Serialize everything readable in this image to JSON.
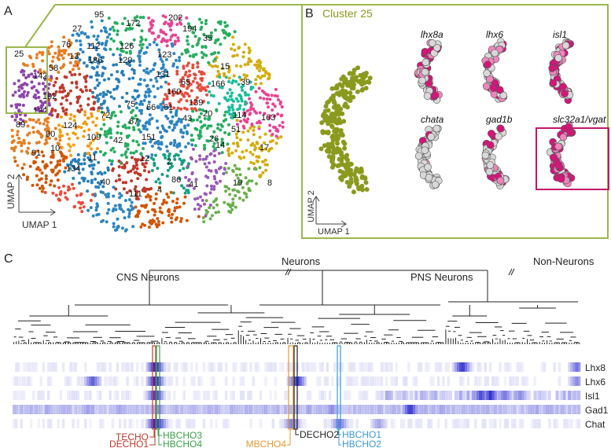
{
  "colors": {
    "olive": "#8a9a1e",
    "frame": "#9bb84a",
    "magenta": "#c2186b",
    "tree": "#222222",
    "techo": "#c0392b",
    "hbcho_green": "#3aa04a",
    "mbcho": "#e39a2e",
    "decho2": "#222222",
    "hbcho_blue": "#3a9ad9",
    "heat": "#1a1acc",
    "palette": [
      "#e67e22",
      "#2e86c1",
      "#27ae60",
      "#c0392b",
      "#d4ac0d",
      "#8e44ad",
      "#e74c3c",
      "#1abc9c",
      "#7f8c8d",
      "#d35400",
      "#16a085",
      "#f39c12",
      "#2980b9",
      "#9b59b6",
      "#e84393",
      "#6ab04c"
    ]
  },
  "panelA": {
    "letter": "A",
    "axis_y": "UMAP 2",
    "axis_x": "UMAP 1",
    "clusters": [
      "95",
      "202",
      "172",
      "194",
      "27",
      "35",
      "112",
      "126",
      "76",
      "13",
      "186",
      "120",
      "123",
      "15",
      "25",
      "142",
      "58",
      "166",
      "131",
      "65",
      "39",
      "192",
      "160",
      "75",
      "66",
      "61",
      "139",
      "20",
      "114",
      "163",
      "132",
      "72",
      "67",
      "43",
      "51",
      "89",
      "124",
      "90",
      "109",
      "42",
      "151",
      "26",
      "14",
      "91",
      "10",
      "11",
      "12",
      "2",
      "17",
      "134",
      "40",
      "111",
      "4",
      "86",
      "41",
      "19",
      "8"
    ]
  },
  "panelB": {
    "letter": "B",
    "title": "Cluster 25",
    "axis_y": "UMAP 2",
    "axis_x": "UMAP 1",
    "genes": [
      "lhx8a",
      "lhx6",
      "isl1",
      "chata",
      "gad1b",
      "slc32a1/vgat"
    ]
  },
  "panelC": {
    "letter": "C",
    "neurons": "Neurons",
    "non_neurons": "Non-Neurons",
    "cns": "CNS Neurons",
    "pns": "PNS Neurons",
    "rows": [
      "Lhx8",
      "Lhx6",
      "Isl1",
      "Gad1",
      "Chat"
    ],
    "labels": {
      "techo": "TECHO",
      "decho1": "DECHO1",
      "hbcho3": "HBCHO3",
      "hbcho4": "HBCHO4",
      "mbcho4": "MBCHO4",
      "decho2": "DECHO2",
      "hbcho1": "HBCHO1",
      "hbcho2": "HBCHO2"
    }
  }
}
